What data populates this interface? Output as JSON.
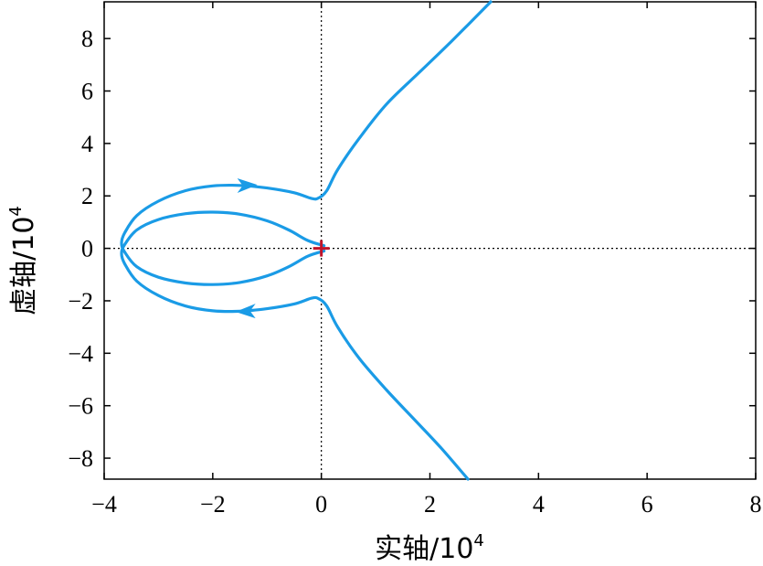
{
  "chart_data": {
    "type": "line",
    "xlabel": "实轴/10",
    "xlabel_exp": "4",
    "ylabel": "虚轴/10",
    "ylabel_exp": "4",
    "xlim": [
      -4,
      8
    ],
    "ylim": [
      -8.8,
      9.4
    ],
    "x_ticks": [
      -4,
      -2,
      0,
      2,
      4,
      6,
      8
    ],
    "y_ticks": [
      -8,
      -6,
      -4,
      -2,
      0,
      2,
      4,
      6,
      8
    ],
    "x_tick_labels": [
      "−4",
      "−2",
      "0",
      "2",
      "4",
      "6",
      "8"
    ],
    "y_tick_labels": [
      "−8",
      "−6",
      "−4",
      "−2",
      "0",
      "2",
      "4",
      "6",
      "8"
    ],
    "grid": false,
    "reference_lines": [
      "x = 0 (dotted)",
      "y = 0 (dotted)"
    ],
    "series_color": "#1a9be6",
    "marker_color": "#c0142a",
    "marker_point": [
      0,
      0
    ],
    "series": [
      {
        "points": [
          [
            0.05,
            -0.1
          ],
          [
            -0.25,
            -0.3
          ],
          [
            -0.6,
            -0.7
          ],
          [
            -1.0,
            -1.05
          ],
          [
            -1.5,
            -1.3
          ],
          [
            -2.0,
            -1.38
          ],
          [
            -2.5,
            -1.32
          ],
          [
            -3.0,
            -1.1
          ],
          [
            -3.4,
            -0.7
          ],
          [
            -3.62,
            -0.15
          ],
          [
            -3.68,
            0.2
          ],
          [
            -3.62,
            0.6
          ],
          [
            -3.4,
            1.25
          ],
          [
            -3.0,
            1.8
          ],
          [
            -2.5,
            2.2
          ],
          [
            -2.0,
            2.38
          ],
          [
            -1.5,
            2.4
          ],
          [
            -1.0,
            2.3
          ],
          [
            -0.5,
            2.12
          ],
          [
            -0.18,
            1.9
          ],
          [
            -0.05,
            1.92
          ],
          [
            0.1,
            2.2
          ],
          [
            0.3,
            3.0
          ],
          [
            0.7,
            4.2
          ],
          [
            1.2,
            5.5
          ],
          [
            1.8,
            6.7
          ],
          [
            2.4,
            7.9
          ],
          [
            3.12,
            9.4
          ]
        ],
        "arrow_at": [
          -1.38,
          2.39
        ]
      },
      {
        "points": [
          [
            0.05,
            0.1
          ],
          [
            -0.25,
            0.3
          ],
          [
            -0.6,
            0.7
          ],
          [
            -1.0,
            1.05
          ],
          [
            -1.5,
            1.3
          ],
          [
            -2.0,
            1.38
          ],
          [
            -2.5,
            1.32
          ],
          [
            -3.0,
            1.1
          ],
          [
            -3.4,
            0.7
          ],
          [
            -3.62,
            0.15
          ],
          [
            -3.68,
            -0.2
          ],
          [
            -3.62,
            -0.6
          ],
          [
            -3.4,
            -1.25
          ],
          [
            -3.0,
            -1.8
          ],
          [
            -2.5,
            -2.2
          ],
          [
            -2.0,
            -2.38
          ],
          [
            -1.5,
            -2.4
          ],
          [
            -1.0,
            -2.3
          ],
          [
            -0.5,
            -2.12
          ],
          [
            -0.18,
            -1.9
          ],
          [
            -0.05,
            -1.92
          ],
          [
            0.1,
            -2.2
          ],
          [
            0.3,
            -3.0
          ],
          [
            0.7,
            -4.2
          ],
          [
            1.2,
            -5.4
          ],
          [
            1.7,
            -6.5
          ],
          [
            2.2,
            -7.6
          ],
          [
            2.7,
            -8.8
          ]
        ],
        "arrow_at": [
          -1.38,
          -2.39
        ]
      }
    ]
  }
}
